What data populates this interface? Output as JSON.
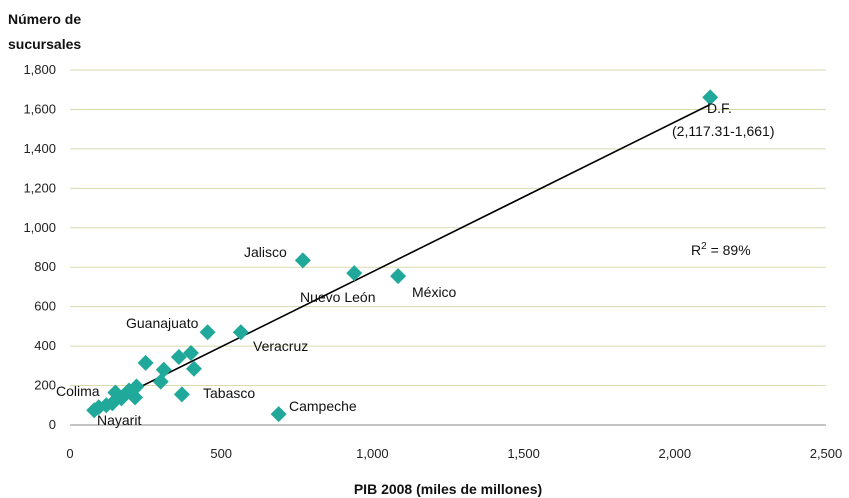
{
  "chart_data": {
    "type": "scatter",
    "ylabel_lines": [
      "Número de",
      "sucursales"
    ],
    "xlabel": "PIB 2008 (miles de millones)",
    "xlim": [
      0,
      2500
    ],
    "ylim": [
      0,
      1800
    ],
    "xticks": [
      0,
      500,
      1000,
      1500,
      2000,
      2500
    ],
    "xtick_labels": [
      "0",
      "500",
      "1,000",
      "1,500",
      "2,000",
      "2,500"
    ],
    "yticks": [
      0,
      200,
      400,
      600,
      800,
      1000,
      1200,
      1400,
      1600,
      1800
    ],
    "ytick_labels": [
      "0",
      "200",
      "400",
      "600",
      "800",
      "1,000",
      "1,200",
      "1,400",
      "1,600",
      "1,800"
    ],
    "grid": true,
    "marker_color": "#20a89a",
    "points": [
      {
        "x": 2117,
        "y": 1661
      },
      {
        "x": 770,
        "y": 835
      },
      {
        "x": 940,
        "y": 770
      },
      {
        "x": 1085,
        "y": 755
      },
      {
        "x": 455,
        "y": 470
      },
      {
        "x": 565,
        "y": 470
      },
      {
        "x": 250,
        "y": 315
      },
      {
        "x": 360,
        "y": 345
      },
      {
        "x": 400,
        "y": 365
      },
      {
        "x": 310,
        "y": 280
      },
      {
        "x": 410,
        "y": 285
      },
      {
        "x": 300,
        "y": 220
      },
      {
        "x": 370,
        "y": 155
      },
      {
        "x": 690,
        "y": 55
      },
      {
        "x": 220,
        "y": 195
      },
      {
        "x": 195,
        "y": 175
      },
      {
        "x": 150,
        "y": 165
      },
      {
        "x": 215,
        "y": 140
      },
      {
        "x": 170,
        "y": 135
      },
      {
        "x": 140,
        "y": 110
      },
      {
        "x": 120,
        "y": 100
      },
      {
        "x": 95,
        "y": 90
      },
      {
        "x": 80,
        "y": 75
      }
    ],
    "trendline": {
      "x": [
        70,
        2117
      ],
      "y": [
        70,
        1625
      ]
    },
    "annotations": {
      "df": [
        "D.F.",
        "(2,117.31-1,661)"
      ],
      "jalisco": "Jalisco",
      "nuevo_leon": "Nuevo León",
      "mexico": "México",
      "guanajuato": "Guanajuato",
      "veracruz": "Veracruz",
      "tabasco": "Tabasco",
      "campeche": "Campeche",
      "colima": "Colima",
      "nayarit": "Nayarit",
      "r2_prefix": "R",
      "r2_exp": "2",
      "r2_suffix": " = 89%"
    }
  }
}
